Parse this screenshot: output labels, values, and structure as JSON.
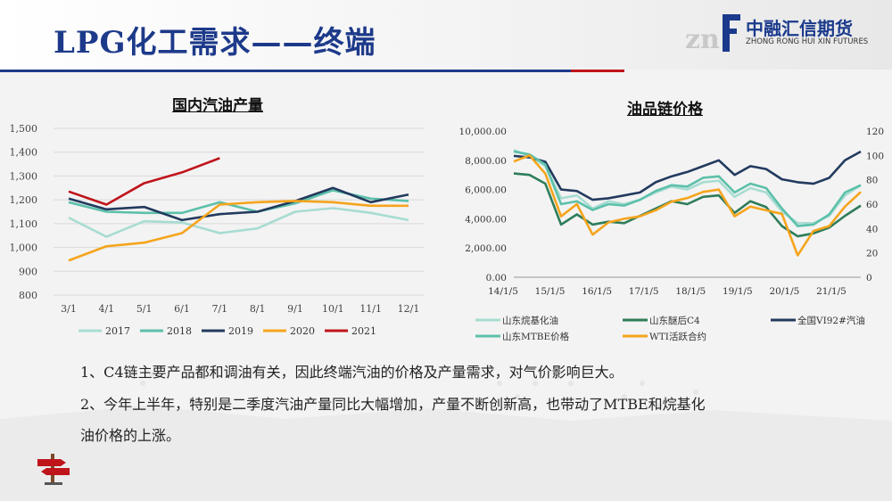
{
  "page": {
    "title": "LPG化工需求——终端",
    "logo": {
      "mark": "znf",
      "cn": "中融汇信期货",
      "en": "ZHONG RONG HUI XIN FUTURES"
    },
    "colors": {
      "title": "#1d3a8a",
      "accent_red": "#c0141b",
      "logo_blue": "#1b3a8c"
    }
  },
  "chart1": {
    "title": "国内汽油产量",
    "type": "line",
    "categories": [
      "3/1",
      "4/1",
      "5/1",
      "6/1",
      "7/1",
      "8/1",
      "9/1",
      "10/1",
      "11/1",
      "12/1"
    ],
    "ylim": [
      800,
      1500
    ],
    "yticks": [
      "1,500",
      "1,400",
      "1,300",
      "1,200",
      "1,100",
      "1,000",
      "900",
      "800"
    ],
    "grid": true,
    "legend_position": "bottom",
    "series": [
      {
        "name": "2017",
        "color": "#a8dcd2",
        "values": [
          1125,
          1045,
          1110,
          1105,
          1060,
          1080,
          1150,
          1165,
          1145,
          1115
        ]
      },
      {
        "name": "2018",
        "color": "#5cc0aa",
        "values": [
          1190,
          1150,
          1145,
          1145,
          1190,
          1150,
          1185,
          1240,
          1205,
          1195
        ]
      },
      {
        "name": "2019",
        "color": "#223a5e",
        "values": [
          1205,
          1160,
          1170,
          1115,
          1140,
          1150,
          1195,
          1250,
          1190,
          1222
        ]
      },
      {
        "name": "2020",
        "color": "#f5a41c",
        "values": [
          945,
          1005,
          1020,
          1060,
          1180,
          1190,
          1195,
          1190,
          1175,
          1175
        ]
      },
      {
        "name": "2021",
        "color": "#c0141b",
        "values": [
          1235,
          1180,
          1270,
          1315,
          1375
        ]
      }
    ]
  },
  "chart2": {
    "title": "油品链价格",
    "type": "line",
    "x_ticks": [
      "14/1/5",
      "15/1/5",
      "16/1/5",
      "17/1/5",
      "18/1/5",
      "19/1/5",
      "20/1/5",
      "21/1/5"
    ],
    "y_left_ticks": [
      "10,000.00",
      "8,000.00",
      "6,000.00",
      "4,000.00",
      "2,000.00",
      "0.00"
    ],
    "y_right_ticks": [
      "120",
      "100",
      "80",
      "60",
      "40",
      "20",
      "0"
    ],
    "ylim_left": [
      0,
      10000
    ],
    "ylim_right": [
      0,
      120
    ],
    "legend_position": "bottom",
    "series": [
      {
        "name": "山东烷基化油",
        "color": "#a8dcd2",
        "axis": "left",
        "values": [
          8700,
          8300,
          7600,
          5400,
          5600,
          4700,
          5200,
          5000,
          5300,
          5800,
          6200,
          6000,
          6500,
          6600,
          5500,
          6100,
          5800,
          4500,
          3700,
          3700,
          4200,
          5600,
          6300
        ]
      },
      {
        "name": "山东醚后C4",
        "color": "#2e7d5a",
        "axis": "left",
        "values": [
          7100,
          7000,
          6400,
          3600,
          4300,
          3600,
          3800,
          3700,
          4200,
          4700,
          5200,
          5000,
          5500,
          5600,
          4400,
          5200,
          4800,
          3500,
          2800,
          3000,
          3400,
          4200,
          4900
        ]
      },
      {
        "name": "全国VI92#汽油",
        "color": "#223a5e",
        "axis": "left",
        "values": [
          8300,
          8200,
          7900,
          6000,
          5900,
          5300,
          5400,
          5600,
          5800,
          6500,
          6900,
          7200,
          7600,
          8000,
          7000,
          7600,
          7400,
          6700,
          6500,
          6400,
          6800,
          8000,
          8600
        ]
      },
      {
        "name": "山东MTBE价格",
        "color": "#5cc0aa",
        "axis": "left",
        "values": [
          8600,
          8400,
          7700,
          5000,
          5200,
          4600,
          5000,
          4900,
          5300,
          5900,
          6300,
          6200,
          6800,
          6900,
          5800,
          6400,
          6100,
          4700,
          3500,
          3600,
          4300,
          5800,
          6300
        ]
      },
      {
        "name": "WTI活跃合约",
        "color": "#f5a41c",
        "axis": "right",
        "values": [
          95,
          100,
          85,
          50,
          60,
          35,
          45,
          48,
          50,
          55,
          62,
          65,
          70,
          72,
          50,
          58,
          55,
          52,
          18,
          38,
          42,
          58,
          70
        ]
      }
    ]
  },
  "text": {
    "line1": "1、C4链主要产品都和调油有关，因此终端汽油的价格及产量需求，对气价影响巨大。",
    "line2": "2、今年上半年，特别是二季度汽油产量同比大幅增加，产量不断创新高，也带动了MTBE和烷基化",
    "line3": "油价格的上涨。"
  }
}
